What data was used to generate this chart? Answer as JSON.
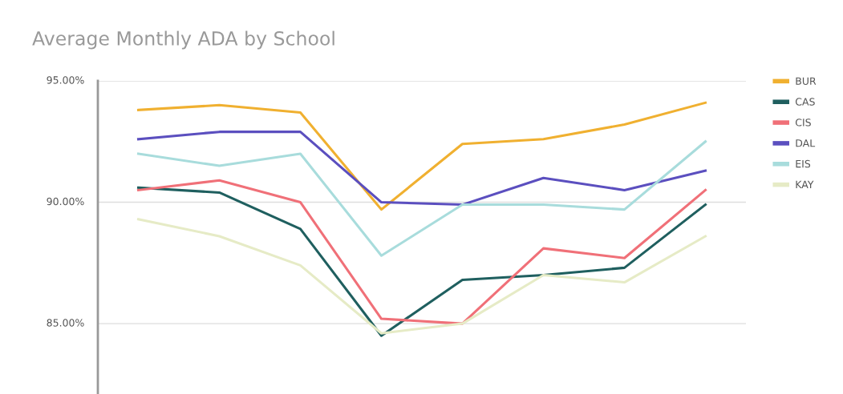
{
  "chart_data": {
    "type": "line",
    "title": "Average Monthly ADA by School",
    "categories": [
      null,
      null,
      null,
      null,
      null,
      null,
      null,
      null
    ],
    "series": [
      {
        "name": "BUR",
        "color": "#f0b030",
        "values": [
          93.8,
          94.0,
          93.7,
          89.7,
          92.4,
          92.6,
          93.2,
          94.1
        ]
      },
      {
        "name": "CAS",
        "color": "#1f5f5f",
        "values": [
          90.6,
          90.4,
          88.9,
          84.5,
          86.8,
          87.0,
          87.3,
          89.9
        ]
      },
      {
        "name": "CIS",
        "color": "#f07078",
        "values": [
          90.5,
          90.9,
          90.0,
          85.2,
          85.0,
          88.1,
          87.7,
          90.5
        ]
      },
      {
        "name": "DAL",
        "color": "#5b4fbf",
        "values": [
          92.6,
          92.9,
          92.9,
          90.0,
          89.9,
          91.0,
          90.5,
          91.3
        ]
      },
      {
        "name": "EIS",
        "color": "#a8dcdc",
        "values": [
          92.0,
          91.5,
          92.0,
          87.8,
          89.9,
          89.9,
          89.7,
          92.5
        ]
      },
      {
        "name": "KAY",
        "color": "#e6ebc6",
        "values": [
          89.3,
          88.6,
          87.4,
          84.6,
          85.0,
          87.0,
          86.7,
          88.6
        ]
      }
    ],
    "ylim": [
      82.1,
      95
    ],
    "yticks": [
      {
        "value": 85,
        "label": "85.00%"
      },
      {
        "value": 90,
        "label": "90.00%"
      },
      {
        "value": 95,
        "label": "95.00%"
      }
    ],
    "grid": "y",
    "legend": "top right",
    "tick_labels": "y",
    "marker": "none",
    "line_style": "solid"
  }
}
